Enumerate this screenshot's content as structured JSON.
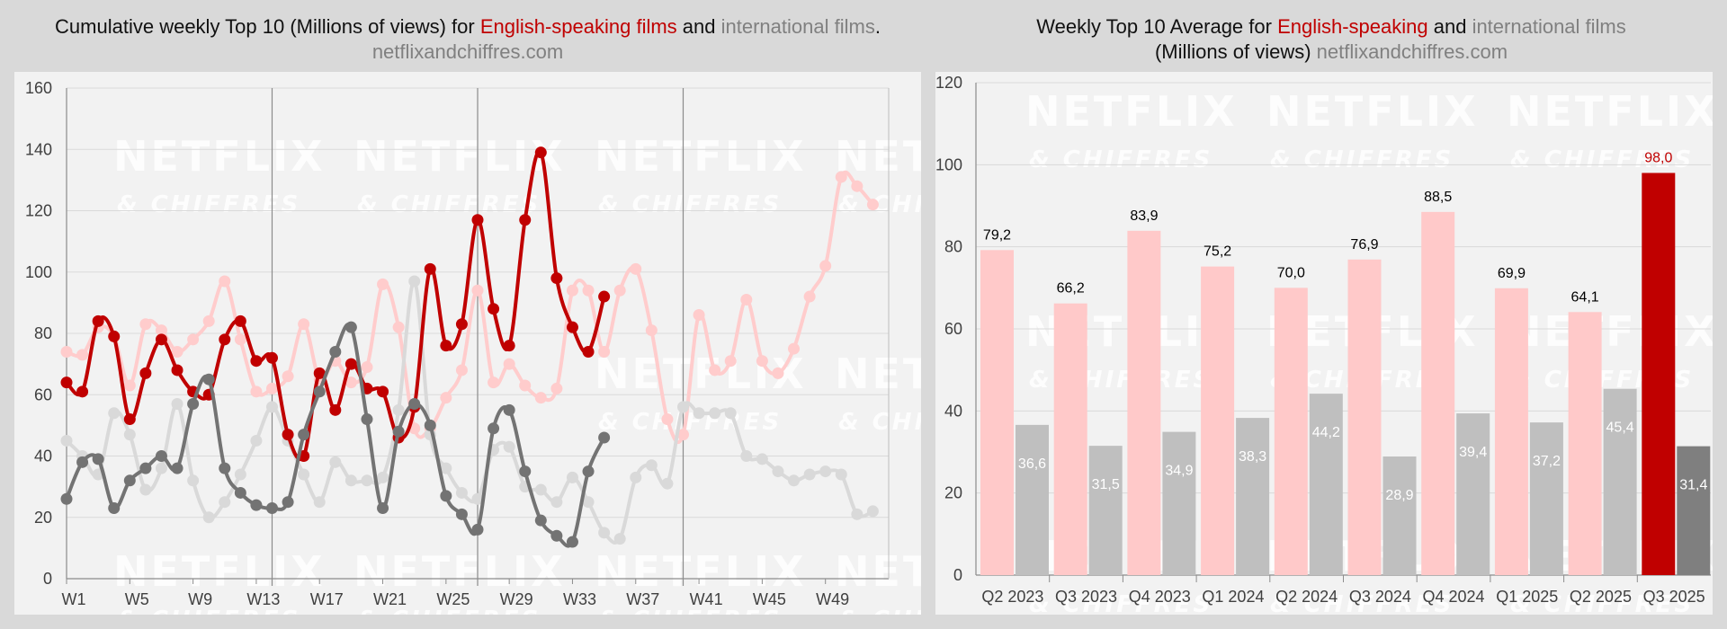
{
  "titles": {
    "left": {
      "prefix": "Cumulative weekly Top 10 (Millions of views) for ",
      "english": "English-speaking films",
      "mid": " and ",
      "intl": "international films",
      "suffix": ".",
      "source": "netflixandchiffres.com"
    },
    "right": {
      "prefix": "Weekly Top 10 Average for ",
      "english": "English-speaking",
      "mid": " and ",
      "intl": "international films",
      "line2": "(Millions of views) ",
      "source": "netflixandchiffres.com"
    }
  },
  "watermark": {
    "line1": "NETFLIX",
    "line2": "& CHIFFRES"
  },
  "colors": {
    "english_current": "#c00000",
    "english_previous": "#ffcccc",
    "intl_current": "#737373",
    "intl_previous": "#d9d9d9",
    "bar_english": "#ffc9c9",
    "bar_intl": "#bfbfbf",
    "bar_english_latest": "#c00000",
    "bar_intl_latest": "#7f7f7f"
  },
  "chart_data": [
    {
      "type": "line",
      "title": "Cumulative weekly Top 10 (Millions of views) for English-speaking films and international films.",
      "x_tick_labels": [
        "W1",
        "W5",
        "W9",
        "W13",
        "W17",
        "W21",
        "W25",
        "W29",
        "W33",
        "W37",
        "W41",
        "W45",
        "W49"
      ],
      "x_range": [
        1,
        53
      ],
      "ylim": [
        0,
        160
      ],
      "y_ticks": [
        0,
        20,
        40,
        60,
        80,
        100,
        120,
        140,
        160
      ],
      "grid": true,
      "series": [
        {
          "role": "english-previous",
          "values": [
            74,
            73,
            82,
            79,
            63,
            83,
            81,
            74,
            78,
            84,
            97,
            78,
            61,
            62,
            66,
            83,
            65,
            71,
            64,
            69,
            96,
            82,
            49,
            49,
            59,
            68,
            94,
            64,
            70,
            63,
            59,
            62,
            94,
            94,
            74,
            94,
            101,
            81,
            52,
            47,
            86,
            68,
            71,
            91,
            71,
            67,
            75,
            92,
            102,
            131,
            128,
            122
          ]
        },
        {
          "role": "intl-previous",
          "values": [
            45,
            40,
            34,
            54,
            47,
            29,
            36,
            57,
            32,
            20,
            25,
            34,
            45,
            56,
            45,
            34,
            25,
            38,
            32,
            32,
            33,
            55,
            97,
            47,
            36,
            28,
            26,
            42,
            43,
            30,
            29,
            25,
            33,
            25,
            15,
            13,
            33,
            37,
            31,
            56,
            54,
            54,
            54,
            40,
            39,
            35,
            32,
            34,
            35,
            34,
            21,
            22
          ]
        },
        {
          "role": "english-current",
          "values": [
            64,
            61,
            84,
            79,
            52,
            67,
            78,
            68,
            61,
            60,
            78,
            84,
            71,
            72,
            47,
            40,
            67,
            55,
            70,
            62,
            61,
            46,
            56,
            101,
            76,
            83,
            117,
            88,
            76,
            117,
            139,
            98,
            82,
            74,
            92
          ]
        },
        {
          "role": "intl-current",
          "values": [
            26,
            38,
            39,
            23,
            32,
            36,
            40,
            36,
            57,
            65,
            36,
            28,
            24,
            23,
            25,
            47,
            61,
            74,
            82,
            52,
            23,
            48,
            57,
            50,
            27,
            21,
            16,
            49,
            55,
            35,
            19,
            14,
            12,
            35,
            46
          ]
        }
      ]
    },
    {
      "type": "bar",
      "title": "Weekly Top 10 Average for English-speaking and international films (Millions of views)",
      "categories": [
        "Q2 2023",
        "Q3 2023",
        "Q4 2023",
        "Q1 2024",
        "Q2 2024",
        "Q3 2024",
        "Q4 2024",
        "Q1 2025",
        "Q2 2025",
        "Q3 2025"
      ],
      "ylim": [
        0,
        120
      ],
      "y_ticks": [
        0,
        20,
        40,
        60,
        80,
        100,
        120
      ],
      "series": [
        {
          "name": "English-speaking",
          "values": [
            79.2,
            66.2,
            83.9,
            75.2,
            70.0,
            76.9,
            88.5,
            69.9,
            64.1,
            98.0
          ],
          "labels": [
            "79,2",
            "66,2",
            "83,9",
            "75,2",
            "70,0",
            "76,9",
            "88,5",
            "69,9",
            "64,1",
            "98,0"
          ]
        },
        {
          "name": "international films",
          "values": [
            36.6,
            31.5,
            34.9,
            38.3,
            44.2,
            28.9,
            39.4,
            37.2,
            45.4,
            31.4
          ],
          "labels": [
            "36,6",
            "31,5",
            "34,9",
            "38,3",
            "44,2",
            "28,9",
            "39,4",
            "37,2",
            "45,4",
            "31,4"
          ]
        }
      ]
    }
  ]
}
